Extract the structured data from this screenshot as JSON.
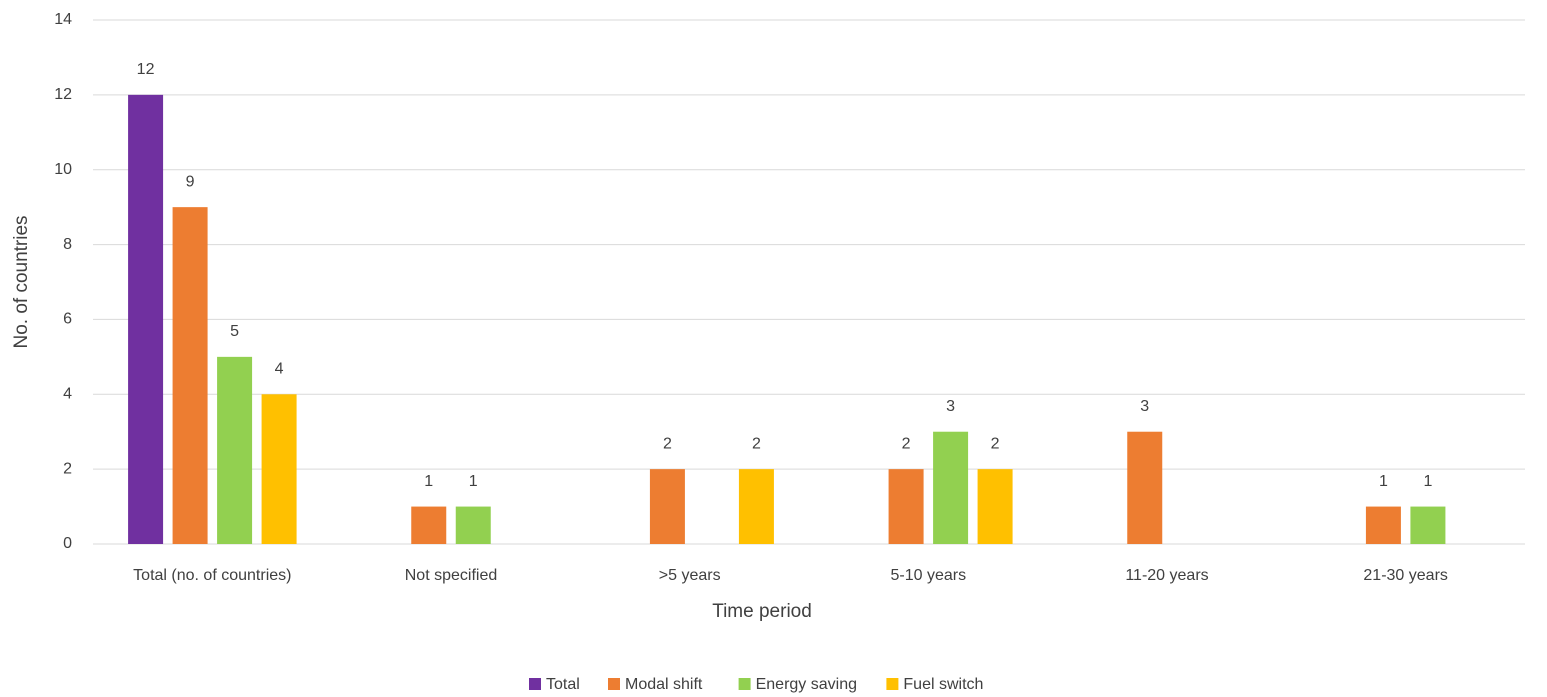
{
  "chart_data": {
    "type": "bar",
    "categories": [
      "Total (no. of countries)",
      "Not specified",
      ">5 years",
      "5-10 years",
      "11-20 years",
      "21-30 years"
    ],
    "series": [
      {
        "name": "Total",
        "color": "#7030a0",
        "values": [
          12,
          null,
          null,
          null,
          null,
          null
        ]
      },
      {
        "name": "Modal shift",
        "color": "#ed7d31",
        "values": [
          9,
          1,
          2,
          2,
          3,
          1
        ]
      },
      {
        "name": "Energy saving",
        "color": "#92d050",
        "values": [
          5,
          1,
          null,
          3,
          null,
          1
        ]
      },
      {
        "name": "Fuel switch",
        "color": "#ffc000",
        "values": [
          4,
          null,
          2,
          2,
          null,
          null
        ]
      }
    ],
    "xlabel": "Time period",
    "ylabel": "No. of countries",
    "ylim": [
      0,
      14
    ],
    "yticks": [
      0,
      2,
      4,
      6,
      8,
      10,
      12,
      14
    ],
    "grid": true,
    "legend": "bottom"
  }
}
